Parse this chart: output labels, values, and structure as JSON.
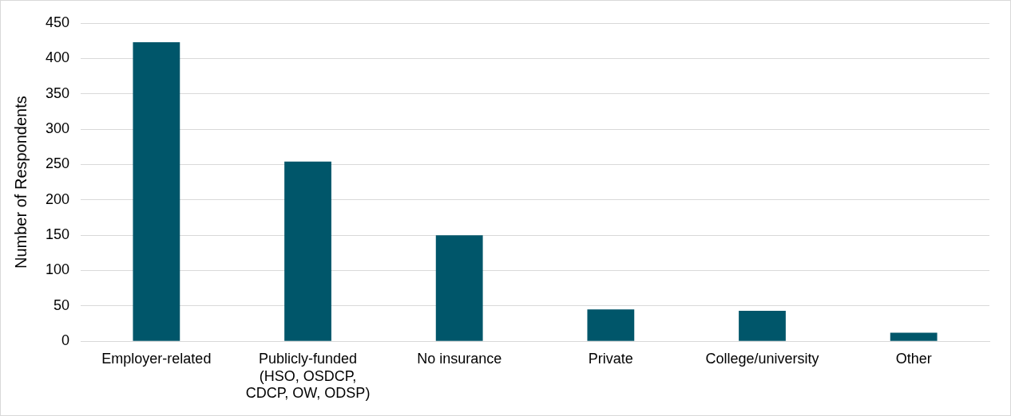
{
  "chart_data": {
    "type": "bar",
    "ylabel": "Number of Respondents",
    "categories": [
      "Employer-related",
      "Publicly-funded (HSO, OSDCP, CDCP, OW, ODSP)",
      "No insurance",
      "Private",
      "College/university",
      "Other"
    ],
    "values": [
      423,
      254,
      150,
      45,
      43,
      12
    ],
    "color": "#00566a",
    "ylim": [
      0,
      450
    ],
    "yticks": [
      0,
      50,
      100,
      150,
      200,
      250,
      300,
      350,
      400,
      450
    ],
    "grid": "y",
    "legend": false
  }
}
